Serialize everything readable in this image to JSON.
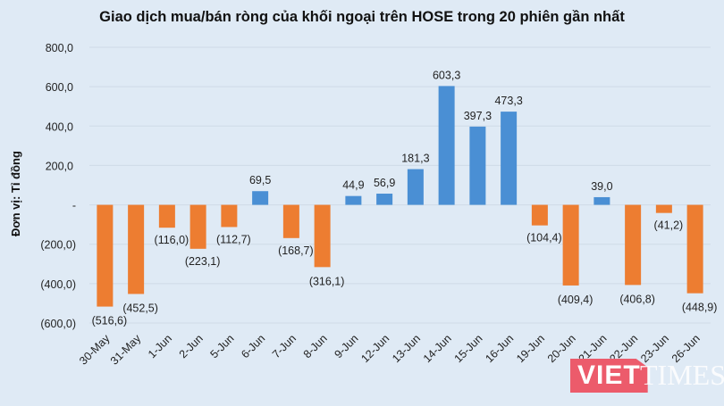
{
  "chart_data": {
    "type": "bar",
    "title": "Giao dịch mua/bán ròng của khối ngoại trên HOSE trong 20 phiên gần nhất",
    "xlabel": "",
    "ylabel": "Đơn vị: Tỉ đồng",
    "ylim": [
      -600,
      800
    ],
    "yticks": [
      "800,0",
      "600,0",
      "400,0",
      "200,0",
      "-",
      "(200,0)",
      "(400,0)",
      "(600,0)"
    ],
    "ytick_values": [
      800,
      600,
      400,
      200,
      0,
      -200,
      -400,
      -600
    ],
    "grid": true,
    "categories": [
      "30-May",
      "31-May",
      "1-Jun",
      "2-Jun",
      "5-Jun",
      "6-Jun",
      "7-Jun",
      "8-Jun",
      "9-Jun",
      "12-Jun",
      "13-Jun",
      "14-Jun",
      "15-Jun",
      "16-Jun",
      "19-Jun",
      "20-Jun",
      "21-Jun",
      "22-Jun",
      "23-Jun",
      "26-Jun"
    ],
    "values": [
      -516.6,
      -452.5,
      -116.0,
      -223.1,
      -112.7,
      69.5,
      -168.7,
      -316.1,
      44.9,
      56.9,
      181.3,
      603.3,
      397.3,
      473.3,
      -104.4,
      -409.4,
      39.0,
      -406.8,
      -41.2,
      -448.9
    ],
    "labels": [
      "(516,6)",
      "(452,5)",
      "(116,0)",
      "(223,1)",
      "(112,7)",
      "69,5",
      "(168,7)",
      "(316,1)",
      "44,9",
      "56,9",
      "181,3",
      "603,3",
      "397,3",
      "473,3",
      "(104,4)",
      "(409,4)",
      "39,0",
      "(406,8)",
      "(41,2)",
      "(448,9)"
    ],
    "colors": {
      "positive": "#4a8fd4",
      "negative": "#ed7d31"
    }
  },
  "watermark": {
    "brand": "VIETTIMES"
  }
}
